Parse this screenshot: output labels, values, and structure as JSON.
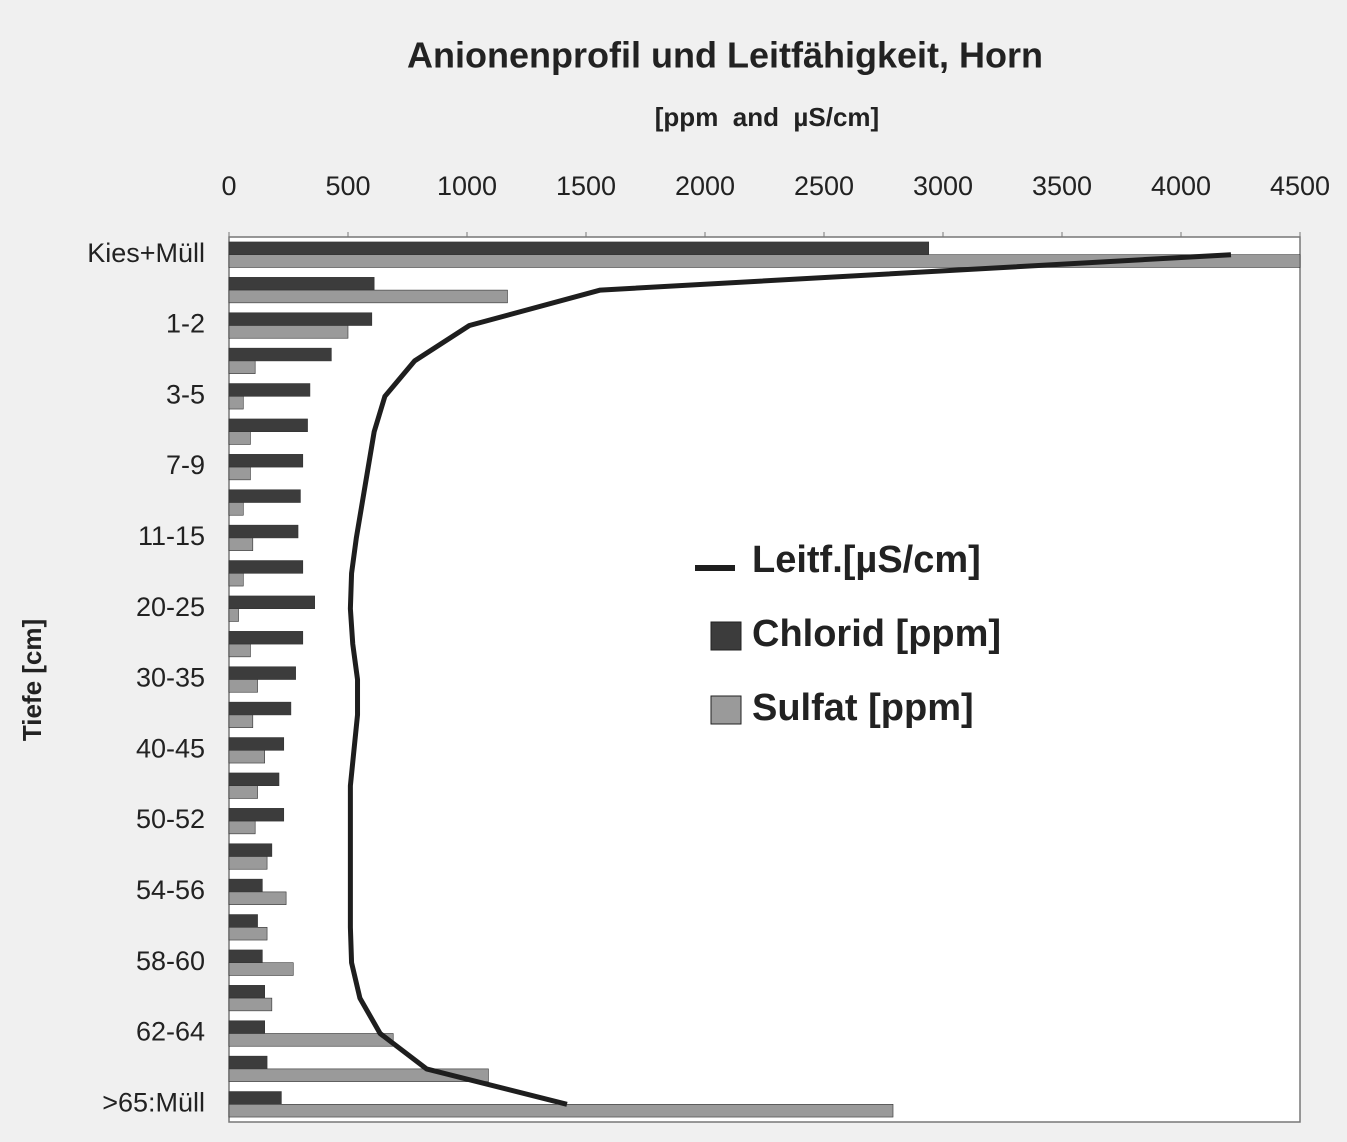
{
  "chart_data": {
    "type": "bar",
    "orientation": "horizontal",
    "title": "Anionenprofil und Leitfähigkeit, Horn",
    "subtitle": "[ppm  and  µS/cm]",
    "y_label": "Tiefe [cm]",
    "categories": [
      "Kies+Müll",
      null,
      "1-2",
      null,
      "3-5",
      null,
      "7-9",
      null,
      "11-15",
      null,
      "20-25",
      null,
      "30-35",
      null,
      "40-45",
      null,
      "50-52",
      null,
      "54-56",
      null,
      "58-60",
      null,
      "62-64",
      null,
      ">65:Müll"
    ],
    "xlim": [
      0,
      4500
    ],
    "xticks": [
      0,
      500,
      1000,
      1500,
      2000,
      2500,
      3000,
      3500,
      4000,
      4500
    ],
    "legend": "right",
    "series": [
      {
        "name": "Leitf.[µS/cm]",
        "type": "line",
        "color": "#1e1e1e",
        "values": [
          4210,
          1560,
          1010,
          780,
          655,
          610,
          585,
          560,
          535,
          515,
          510,
          520,
          540,
          540,
          525,
          510,
          510,
          510,
          510,
          510,
          515,
          550,
          635,
          830,
          1420
        ]
      },
      {
        "name": "Chlorid [ppm]",
        "type": "bar",
        "color": "#3c3c3c",
        "values": [
          2940,
          610,
          600,
          430,
          340,
          330,
          310,
          300,
          290,
          310,
          360,
          310,
          280,
          260,
          230,
          210,
          230,
          180,
          140,
          120,
          140,
          150,
          150,
          160,
          220
        ]
      },
      {
        "name": "Sulfat [ppm]",
        "type": "bar",
        "color": "#9a9a9a",
        "values": [
          4500,
          1170,
          500,
          110,
          60,
          90,
          90,
          60,
          100,
          60,
          40,
          90,
          120,
          100,
          150,
          120,
          110,
          160,
          240,
          160,
          270,
          180,
          690,
          1090,
          2790
        ]
      }
    ]
  }
}
